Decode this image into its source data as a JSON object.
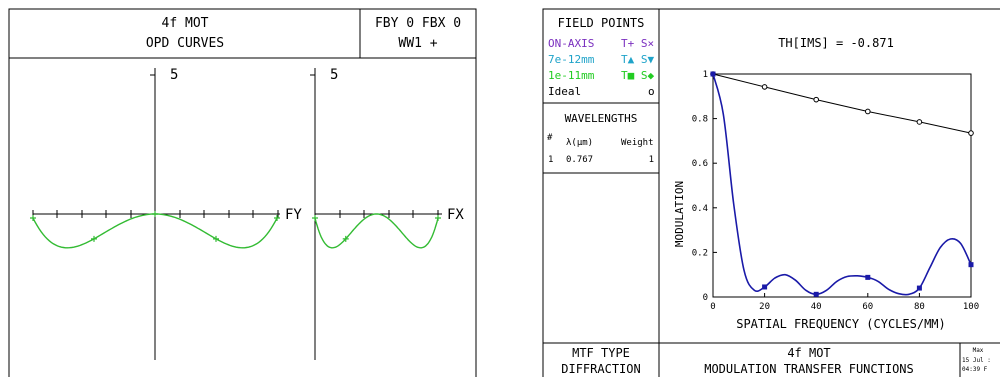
{
  "opd_panel": {
    "title_line1": "4f MOT",
    "title_line2": "OPD CURVES",
    "field_line1": "FBY 0 FBX 0",
    "field_line2": "WW1 +",
    "scale_label_left": "5",
    "scale_label_right": "5",
    "axis_label_fy": "FY",
    "axis_label_fx": "FX",
    "curve_color": "#33bb33"
  },
  "mtf_panel": {
    "field_points_title": "FIELD POINTS",
    "field_points": [
      {
        "name": "ON-AXIS",
        "marks": "T+ S×",
        "color": "#7a2fbf"
      },
      {
        "name": "7e-12mm",
        "marks": "T▲ S▼",
        "color": "#1fa3c9"
      },
      {
        "name": "1e-11mm",
        "marks": "T■ S◆",
        "color": "#22cc22"
      },
      {
        "name": "Ideal",
        "marks": "o",
        "color": "#000000"
      }
    ],
    "wavelengths_title": "WAVELENGTHS",
    "wl_header": {
      "num": "#",
      "lambda": "λ(μm)",
      "weight": "Weight"
    },
    "wl_rows": [
      {
        "num": "1",
        "lambda": "0.767",
        "weight": "1"
      }
    ],
    "th_label": "TH[IMS] = -0.871",
    "mtf_type_line1": "MTF TYPE",
    "mtf_type_line2": "DIFFRACTION",
    "footer_title_line1": "4f MOT",
    "footer_title_line2": "MODULATION TRANSFER FUNCTIONS",
    "corner_line1": "Max",
    "corner_line2": "15 Jul :",
    "corner_line3": "04:39 F"
  },
  "chart_data": {
    "type": "line",
    "title": "TH[IMS] = -0.871",
    "xlabel": "SPATIAL FREQUENCY (CYCLES/MM)",
    "ylabel": "MODULATION",
    "xlim": [
      0,
      100
    ],
    "ylim": [
      0,
      1
    ],
    "xticks": [
      "0",
      "20",
      "40",
      "60",
      "80",
      "100"
    ],
    "yticks": [
      "0",
      "0.2",
      "0.4",
      "0.6",
      "0.8",
      "1"
    ],
    "series": [
      {
        "name": "Ideal",
        "color": "#000000",
        "x": [
          0,
          20,
          40,
          60,
          80,
          100
        ],
        "y": [
          1.0,
          0.942,
          0.885,
          0.832,
          0.785,
          0.735
        ]
      },
      {
        "name": "ON-AXIS",
        "color": "#1a1aa8",
        "x": [
          0,
          4,
          8,
          12,
          16,
          20,
          24,
          28,
          32,
          36,
          40,
          44,
          48,
          52,
          56,
          60,
          64,
          68,
          72,
          76,
          80,
          84,
          88,
          92,
          96,
          100
        ],
        "y": [
          1.0,
          0.82,
          0.42,
          0.12,
          0.03,
          0.045,
          0.085,
          0.1,
          0.075,
          0.03,
          0.012,
          0.03,
          0.07,
          0.092,
          0.095,
          0.088,
          0.07,
          0.035,
          0.015,
          0.012,
          0.04,
          0.13,
          0.22,
          0.26,
          0.24,
          0.145
        ]
      }
    ]
  }
}
